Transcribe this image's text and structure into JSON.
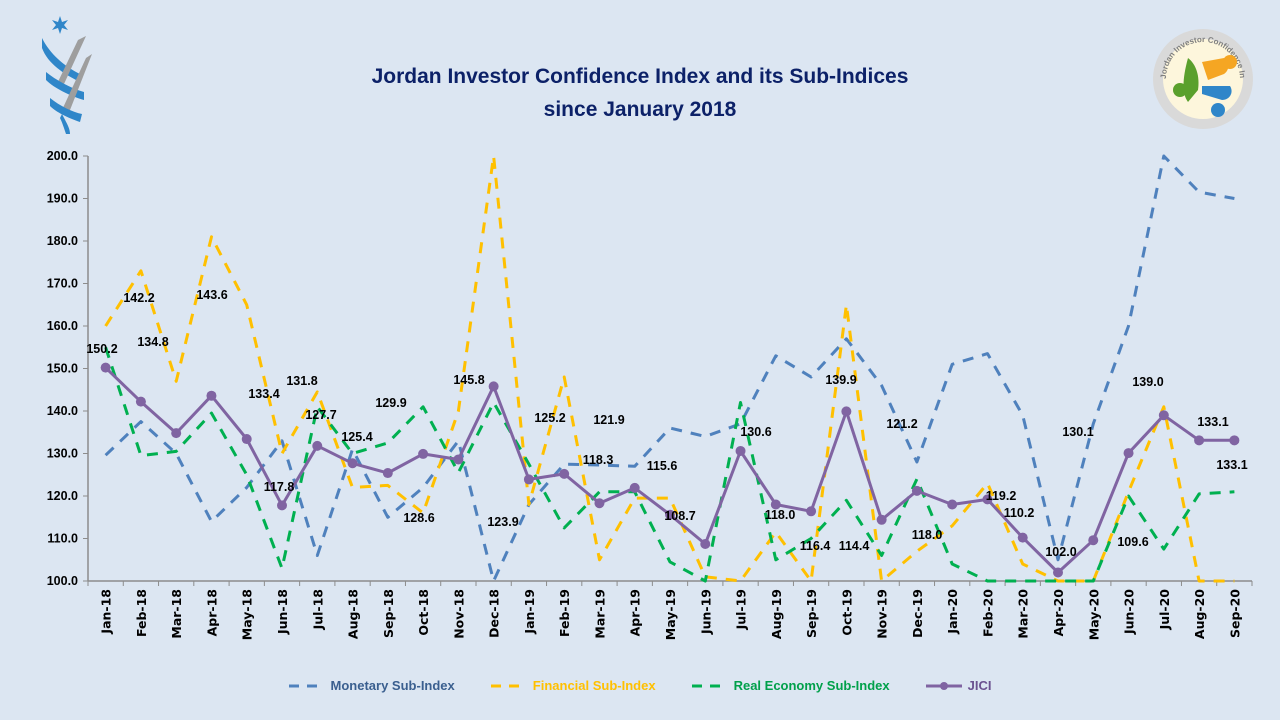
{
  "header": {
    "title_line1": "Jordan Investor Confidence Index and its Sub-Indices",
    "title_line2": "since January 2018",
    "left_logo": "jordan-emblem-logo",
    "right_logo": "jordan-investor-confidence-index-logo",
    "right_logo_text": "Jordan Investor Confidence Index"
  },
  "chart_data": {
    "type": "line",
    "title": "Jordan Investor Confidence Index and its Sub-Indices since January 2018",
    "xlabel": "",
    "ylabel": "",
    "ylim": [
      100,
      200
    ],
    "yticks": [
      "100.0",
      "110.0",
      "120.0",
      "130.0",
      "140.0",
      "150.0",
      "160.0",
      "170.0",
      "180.0",
      "190.0",
      "200.0"
    ],
    "grid": false,
    "legend_position": "bottom",
    "categories": [
      "Jan-18",
      "Feb-18",
      "Mar-18",
      "Apr-18",
      "May-18",
      "Jun-18",
      "Jul-18",
      "Aug-18",
      "Sep-18",
      "Oct-18",
      "Nov-18",
      "Dec-18",
      "Jan-19",
      "Feb-19",
      "Mar-19",
      "Apr-19",
      "May-19",
      "Jun-19",
      "Jul-19",
      "Aug-19",
      "Sep-19",
      "Oct-19",
      "Nov-19",
      "Dec-19",
      "Jan-20",
      "Feb-20",
      "Mar-20",
      "Apr-20",
      "May-20",
      "Jun-20",
      "Jul-20",
      "Aug-20",
      "Sep-20"
    ],
    "series": [
      {
        "name": "Monetary Sub-Index",
        "color": "#4f81bd",
        "style": "dashed",
        "values": [
          129.6,
          137.5,
          130,
          114,
          122,
          133,
          106,
          131,
          115,
          122,
          133,
          100,
          118,
          127.5,
          127.3,
          127,
          136,
          134,
          137,
          153,
          148,
          157,
          146,
          128,
          151,
          153.5,
          139,
          105,
          137,
          160,
          200,
          191.5,
          190
        ]
      },
      {
        "name": "Financial Sub-Index",
        "color": "#ffc000",
        "style": "dashed",
        "values": [
          160,
          173,
          147,
          181,
          165,
          130,
          144.5,
          122,
          122.5,
          116,
          140,
          200,
          118,
          148,
          105,
          119.5,
          119.5,
          101,
          100,
          111.5,
          100,
          165,
          100,
          107,
          113,
          123,
          104,
          100,
          100,
          121,
          141,
          100,
          100
        ]
      },
      {
        "name": "Real Economy Sub-Index",
        "color": "#00b050",
        "style": "dashed",
        "values": [
          155,
          129.5,
          130.5,
          139.5,
          125,
          103,
          141,
          130,
          132.5,
          141,
          125.5,
          142,
          127.5,
          112.5,
          121,
          121,
          104.5,
          100,
          142,
          105,
          110,
          119,
          106,
          124,
          104,
          100,
          100,
          100,
          100,
          120,
          107.5,
          120.5,
          121
        ]
      },
      {
        "name": "JICI",
        "color": "#8064a2",
        "style": "solid-marker",
        "values": [
          150.2,
          142.2,
          134.8,
          143.6,
          133.4,
          117.8,
          131.8,
          127.7,
          125.4,
          129.9,
          128.6,
          145.8,
          123.9,
          125.2,
          118.3,
          121.9,
          115.6,
          108.7,
          130.6,
          118.0,
          116.4,
          139.9,
          114.4,
          121.2,
          118.0,
          119.2,
          110.2,
          102.0,
          109.6,
          130.1,
          139.0,
          133.1,
          133.1
        ],
        "data_labels": [
          "150.2",
          "142.2",
          "134.8",
          "143.6",
          "133.4",
          "117.8",
          "131.8",
          "127.7",
          "125.4",
          "129.9",
          "128.6",
          "145.8",
          "123.9",
          "125.2",
          "118.3",
          "121.9",
          "115.6",
          "108.7",
          "130.6",
          "118.0",
          "116.4",
          "139.9",
          "114.4",
          "121.2",
          "118.0",
          "119.2",
          "110.2",
          "102.0",
          "109.6",
          "130.1",
          "139.0",
          "133.1",
          "133.1"
        ]
      }
    ]
  },
  "legend": {
    "items": [
      {
        "label": "Monetary Sub-Index",
        "color": "#4f81bd",
        "text_color": "#3a5f8f"
      },
      {
        "label": "Financial Sub-Index",
        "color": "#ffc000",
        "text_color": "#ffc000"
      },
      {
        "label": "Real Economy Sub-Index",
        "color": "#00b050",
        "text_color": "#00a04a"
      },
      {
        "label": "JICI",
        "color": "#8064a2",
        "text_color": "#6b5290"
      }
    ]
  }
}
